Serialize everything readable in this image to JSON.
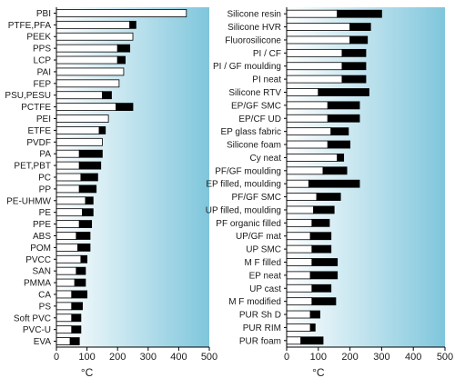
{
  "chart_data": [
    {
      "type": "bar",
      "stacked_range": true,
      "xlabel": "°C",
      "xlim": [
        0,
        500
      ],
      "xticks": [
        0,
        100,
        200,
        300,
        400,
        500
      ],
      "grid": false,
      "colors": {
        "short_term": "#000000",
        "long_term": "#ffffff",
        "background_gradient": [
          "#ffffff",
          "#7fc6dc"
        ]
      },
      "categories": [
        "PBI",
        "PTFE,PFA",
        "PEEK",
        "PPS",
        "LCP",
        "PAI",
        "FEP",
        "PSU,PESU",
        "PCTFE",
        "PEI",
        "ETFE",
        "PVDF",
        "PA",
        "PET,PBT",
        "PC",
        "PP",
        "PE-UHMW",
        "PE",
        "PPE",
        "ABS",
        "POM",
        "PVCC",
        "SAN",
        "PMMA",
        "CA",
        "PS",
        "Soft PVC",
        "PVC-U",
        "EVA"
      ],
      "long_term": [
        425,
        240,
        250,
        200,
        200,
        220,
        205,
        150,
        195,
        170,
        140,
        150,
        75,
        75,
        80,
        75,
        95,
        85,
        75,
        65,
        70,
        80,
        65,
        60,
        50,
        50,
        50,
        50,
        45
      ],
      "short_term": [
        260,
        260,
        250,
        240,
        225,
        220,
        205,
        180,
        250,
        170,
        160,
        150,
        150,
        145,
        135,
        130,
        120,
        120,
        115,
        110,
        110,
        100,
        95,
        95,
        100,
        85,
        80,
        80,
        75
      ]
    },
    {
      "type": "bar",
      "stacked_range": true,
      "xlabel": "°C",
      "xlim": [
        0,
        500
      ],
      "xticks": [
        0,
        100,
        200,
        300,
        400,
        500
      ],
      "grid": false,
      "colors": {
        "short_term": "#000000",
        "long_term": "#ffffff",
        "background_gradient": [
          "#ffffff",
          "#7fc6dc"
        ]
      },
      "categories": [
        "Silicone resin",
        "Silicone HVR",
        "Fluorosilicone",
        "PI / CF",
        "PI / GF moulding",
        "PI neat",
        "Silicone RTV",
        "EP/GF SMC",
        "EP/CF UD",
        "EP glass fabric",
        "Silicone foam",
        "Cy neat",
        "PF/GF moulding",
        "EP filled, moulding",
        "PF/GF SMC",
        "UP filled, moulding",
        "PF organic filled",
        "UP/GF mat",
        "UP SMC",
        "M F filled",
        "EP neat",
        "UP cast",
        "M F modified",
        "PUR Sh D",
        "PUR RIM",
        "PUR foam"
      ],
      "long_term": [
        160,
        200,
        200,
        175,
        175,
        175,
        100,
        130,
        130,
        140,
        130,
        160,
        115,
        70,
        95,
        85,
        80,
        75,
        80,
        80,
        75,
        80,
        80,
        75,
        75,
        45
      ],
      "short_term": [
        300,
        265,
        255,
        250,
        250,
        250,
        260,
        230,
        230,
        195,
        200,
        180,
        190,
        230,
        170,
        150,
        135,
        140,
        140,
        160,
        160,
        140,
        155,
        105,
        90,
        115
      ]
    }
  ]
}
